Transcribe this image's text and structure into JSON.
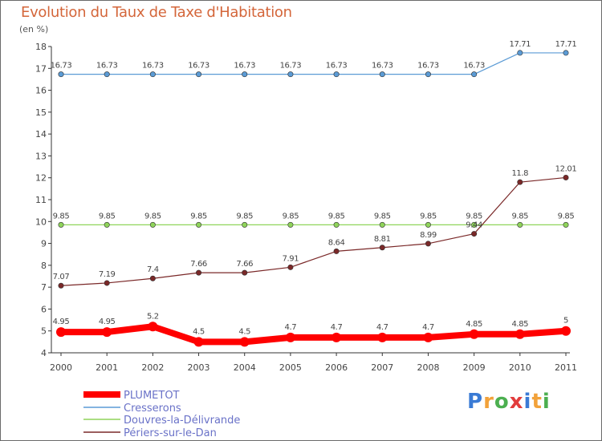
{
  "title": "Evolution du Taux de Taxe d'Habitation",
  "unit": "(en %)",
  "logo": {
    "text": "Proxiti",
    "colors": [
      "#3a7bd5",
      "#f2a23a",
      "#4caf50",
      "#e23c3c",
      "#3a7bd5",
      "#f2a23a",
      "#4caf50"
    ]
  },
  "chart_data": {
    "type": "line",
    "categories": [
      "2000",
      "2001",
      "2002",
      "2003",
      "2004",
      "2005",
      "2006",
      "2007",
      "2008",
      "2009",
      "2010",
      "2011"
    ],
    "ylim": [
      4,
      18
    ],
    "yticks": [
      "4",
      "5",
      "6",
      "7",
      "8",
      "9",
      "10",
      "11",
      "12",
      "13",
      "14",
      "15",
      "16",
      "17",
      "18"
    ],
    "grid": false,
    "legend_placement": "bottom-left",
    "series": [
      {
        "name": "PLUMETOT",
        "color": "#ff0000",
        "values": [
          4.95,
          4.95,
          5.2,
          4.5,
          4.5,
          4.7,
          4.7,
          4.7,
          4.7,
          4.85,
          4.85,
          5
        ],
        "labels": [
          "4.95",
          "4.95",
          "5.2",
          "4.5",
          "4.5",
          "4.7",
          "4.7",
          "4.7",
          "4.7",
          "4.85",
          "4.85",
          "5"
        ]
      },
      {
        "name": "Cresserons",
        "color": "#5b9bd5",
        "values": [
          16.73,
          16.73,
          16.73,
          16.73,
          16.73,
          16.73,
          16.73,
          16.73,
          16.73,
          16.73,
          17.71,
          17.71
        ],
        "labels": [
          "16.73",
          "16.73",
          "16.73",
          "16.73",
          "16.73",
          "16.73",
          "16.73",
          "16.73",
          "16.73",
          "16.73",
          "17.71",
          "17.71"
        ]
      },
      {
        "name": "Douvres-la-Délivrande",
        "color": "#8fd45a",
        "values": [
          9.85,
          9.85,
          9.85,
          9.85,
          9.85,
          9.85,
          9.85,
          9.85,
          9.85,
          9.85,
          9.85,
          9.85
        ],
        "labels": [
          "9.85",
          "9.85",
          "9.85",
          "9.85",
          "9.85",
          "9.85",
          "9.85",
          "9.85",
          "9.85",
          "9.85",
          "9.85",
          "9.85"
        ]
      },
      {
        "name": "Périers-sur-le-Dan",
        "color": "#7a2828",
        "values": [
          7.07,
          7.19,
          7.4,
          7.66,
          7.66,
          7.91,
          8.64,
          8.81,
          8.99,
          9.44,
          11.8,
          12.01
        ],
        "labels": [
          "7.07",
          "7.19",
          "7.4",
          "7.66",
          "7.66",
          "7.91",
          "8.64",
          "8.81",
          "8.99",
          "9.44",
          "11.8",
          "12.01"
        ]
      }
    ]
  }
}
